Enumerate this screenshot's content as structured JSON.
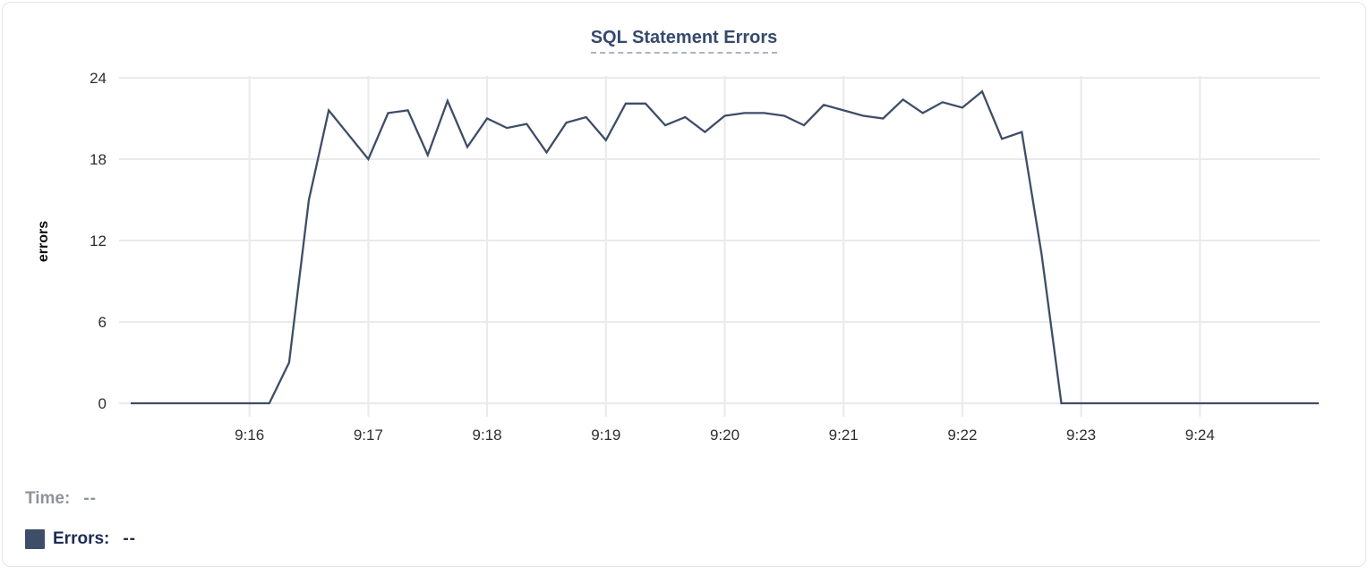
{
  "header": {
    "title": "SQL Statement Errors"
  },
  "tooltip": {
    "time_label": "Time:",
    "time_value": "--",
    "errors_label": "Errors:",
    "errors_value": "--"
  },
  "colors": {
    "line": "#3e4d68",
    "legend_swatch": "#3e4d68",
    "grid": "#e9eaec",
    "axis_text": "#2e2e2e",
    "title": "#36496e",
    "title_underline": "#a9b4c6",
    "time_text": "#8e9399",
    "errors_text": "#1d2b55",
    "card_border": "#e4e4e7",
    "background": "#ffffff"
  },
  "chart_data": {
    "type": "line",
    "title": "SQL Statement Errors",
    "xlabel": "",
    "ylabel": "errors",
    "xlim": [
      "9:15:00",
      "9:25:00"
    ],
    "ylim": [
      0,
      24
    ],
    "y_ticks": [
      0,
      6,
      12,
      18,
      24
    ],
    "x_ticks": [
      "9:16",
      "9:17",
      "9:18",
      "9:19",
      "9:20",
      "9:21",
      "9:22",
      "9:23",
      "9:24"
    ],
    "grid": true,
    "legend_position": "bottom-left",
    "sample_interval_seconds": 10,
    "series": [
      {
        "name": "Errors",
        "color": "#3e4d68",
        "x": [
          "9:15:00",
          "9:15:10",
          "9:15:20",
          "9:15:30",
          "9:15:40",
          "9:15:50",
          "9:16:00",
          "9:16:10",
          "9:16:20",
          "9:16:30",
          "9:16:40",
          "9:16:50",
          "9:17:00",
          "9:17:10",
          "9:17:20",
          "9:17:30",
          "9:17:40",
          "9:17:50",
          "9:18:00",
          "9:18:10",
          "9:18:20",
          "9:18:30",
          "9:18:40",
          "9:18:50",
          "9:19:00",
          "9:19:10",
          "9:19:20",
          "9:19:30",
          "9:19:40",
          "9:19:50",
          "9:20:00",
          "9:20:10",
          "9:20:20",
          "9:20:30",
          "9:20:40",
          "9:20:50",
          "9:21:00",
          "9:21:10",
          "9:21:20",
          "9:21:30",
          "9:21:40",
          "9:21:50",
          "9:22:00",
          "9:22:10",
          "9:22:20",
          "9:22:30",
          "9:22:40",
          "9:22:50",
          "9:23:00",
          "9:23:10",
          "9:23:20",
          "9:23:30",
          "9:23:40",
          "9:23:50",
          "9:24:00",
          "9:24:10",
          "9:24:20",
          "9:24:30",
          "9:24:40",
          "9:24:50",
          "9:25:00"
        ],
        "values": [
          0,
          0,
          0,
          0,
          0,
          0,
          0,
          0,
          3,
          15,
          21.6,
          19.8,
          18,
          21.4,
          21.6,
          18.3,
          22.3,
          18.9,
          21,
          20.3,
          20.6,
          18.5,
          20.7,
          21.1,
          19.4,
          22.1,
          22.1,
          20.5,
          21.1,
          20,
          21.2,
          21.4,
          21.4,
          21.2,
          20.5,
          22,
          21.6,
          21.2,
          21,
          22.4,
          21.4,
          22.2,
          21.8,
          23,
          19.5,
          20,
          11,
          0,
          0,
          0,
          0,
          0,
          0,
          0,
          0,
          0,
          0,
          0,
          0,
          0,
          0
        ]
      }
    ]
  }
}
